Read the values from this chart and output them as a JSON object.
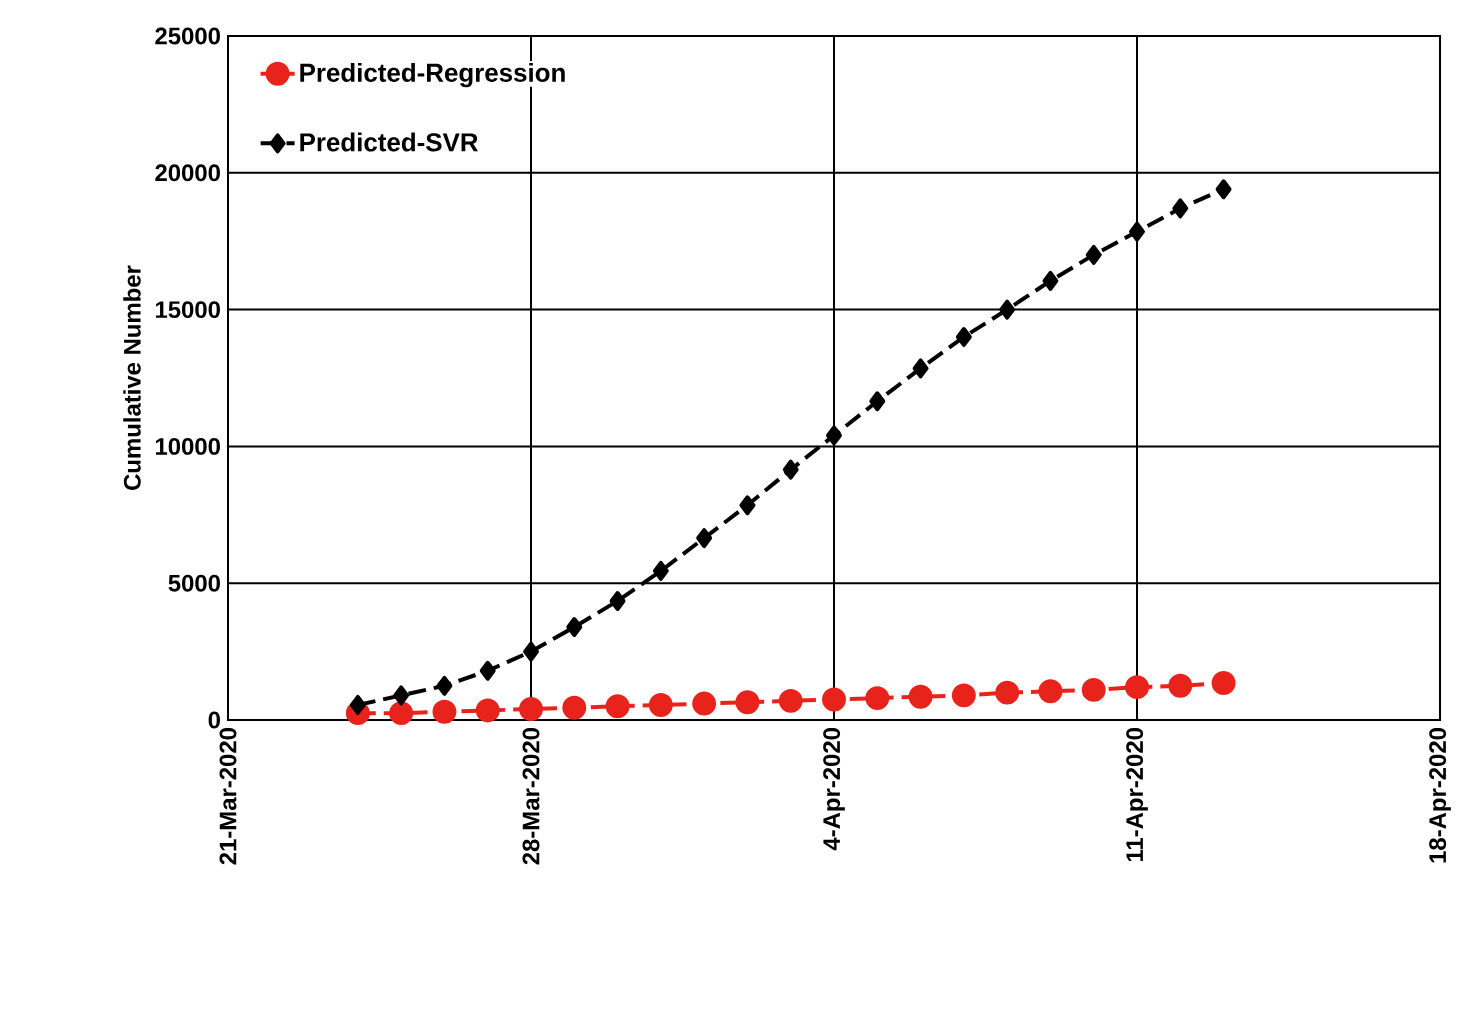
{
  "chart_data": {
    "type": "line",
    "ylabel": "Cumulative Number",
    "x": [
      "2020-03-24",
      "2020-03-25",
      "2020-03-26",
      "2020-03-27",
      "2020-03-28",
      "2020-03-29",
      "2020-03-30",
      "2020-03-31",
      "2020-04-01",
      "2020-04-02",
      "2020-04-03",
      "2020-04-04",
      "2020-04-05",
      "2020-04-06",
      "2020-04-07",
      "2020-04-08",
      "2020-04-09",
      "2020-04-10",
      "2020-04-11",
      "2020-04-12",
      "2020-04-13"
    ],
    "series": [
      {
        "name": "Predicted-Regression",
        "color": "#e8231b",
        "marker": "circle",
        "line_style": "dashed",
        "values": [
          250,
          250,
          300,
          350,
          400,
          450,
          500,
          550,
          600,
          650,
          700,
          750,
          800,
          850,
          900,
          1000,
          1050,
          1100,
          1200,
          1250,
          1350
        ]
      },
      {
        "name": "Predicted-SVR",
        "color": "#000000",
        "marker": "diamond",
        "line_style": "dashed",
        "values": [
          550,
          900,
          1250,
          1800,
          2500,
          3400,
          4350,
          5450,
          6650,
          7850,
          9150,
          10400,
          11650,
          12850,
          14000,
          15000,
          16050,
          17000,
          17850,
          18700,
          19400
        ]
      }
    ],
    "xlim": [
      "2020-03-21",
      "2020-04-18"
    ],
    "xticks": [
      {
        "value": "2020-03-21",
        "label": "21-Mar-2020"
      },
      {
        "value": "2020-03-28",
        "label": "28-Mar-2020"
      },
      {
        "value": "2020-04-04",
        "label": "4-Apr-2020"
      },
      {
        "value": "2020-04-11",
        "label": "11-Apr-2020"
      },
      {
        "value": "2020-04-18",
        "label": "18-Apr-2020"
      }
    ],
    "ylim": [
      0,
      25000
    ],
    "yticks": [
      0,
      5000,
      10000,
      15000,
      20000,
      25000
    ],
    "grid": true,
    "legend": "top left"
  }
}
